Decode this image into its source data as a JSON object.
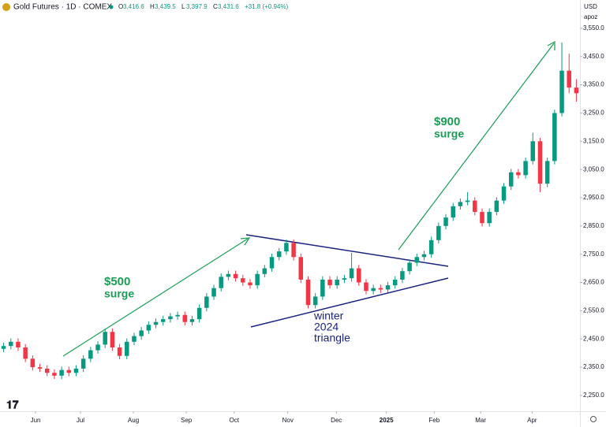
{
  "chart_data": {
    "type": "candlestick",
    "title": "Gold Futures · 1D · COMEX",
    "ohlc_header": [
      {
        "label": "O",
        "value": "3,416.6"
      },
      {
        "label": "H",
        "value": "3,439.5"
      },
      {
        "label": "L",
        "value": "3,397.9"
      },
      {
        "label": "C",
        "value": "3,431.6"
      }
    ],
    "change": "+31.8 (+0.94%)",
    "currency": "USD",
    "unit": "apoz",
    "up_color": "#089981",
    "down_color": "#f23645",
    "annotations": [
      {
        "lines": [
          "$500",
          "surge"
        ],
        "color": "#1a9c55"
      },
      {
        "lines": [
          "$900",
          "surge"
        ],
        "color": "#1a9c55"
      },
      {
        "lines": [
          "winter",
          "2024",
          "triangle"
        ],
        "color": "#1a237e"
      }
    ],
    "open": [
      2415,
      2425,
      2440,
      2420,
      2380,
      2350,
      2345,
      2330,
      2320,
      2340,
      2330,
      2345,
      2380,
      2410,
      2430,
      2475,
      2420,
      2390,
      2440,
      2460,
      2480,
      2500,
      2510,
      2520,
      2530,
      2535,
      2510,
      2520,
      2560,
      2600,
      2630,
      2670,
      2680,
      2665,
      2650,
      2640,
      2680,
      2700,
      2740,
      2760,
      2790,
      2740,
      2660,
      2570,
      2600,
      2660,
      2640,
      2660,
      2665,
      2700,
      2650,
      2620,
      2630,
      2625,
      2640,
      2660,
      2690,
      2720,
      2740,
      2750,
      2800,
      2850,
      2880,
      2920,
      2935,
      2940,
      2900,
      2860,
      2900,
      2940,
      2990,
      3040,
      3030,
      3080,
      3150,
      3000,
      3080,
      3250,
      3400,
      3340
    ],
    "high": [
      2437,
      2452,
      2452,
      2432,
      2392,
      2362,
      2357,
      2342,
      2352,
      2352,
      2357,
      2392,
      2422,
      2442,
      2487,
      2487,
      2432,
      2452,
      2472,
      2492,
      2512,
      2522,
      2532,
      2542,
      2547,
      2547,
      2532,
      2572,
      2612,
      2642,
      2682,
      2692,
      2692,
      2677,
      2662,
      2692,
      2712,
      2752,
      2772,
      2802,
      2802,
      2752,
      2672,
      2612,
      2672,
      2672,
      2672,
      2677,
      2755,
      2712,
      2662,
      2642,
      2642,
      2652,
      2672,
      2702,
      2732,
      2752,
      2762,
      2812,
      2862,
      2892,
      2932,
      2947,
      2970,
      2952,
      2912,
      2912,
      2952,
      3002,
      3052,
      3052,
      3092,
      3180,
      3162,
      3092,
      3262,
      3500,
      3460,
      3370
    ],
    "low": [
      2403,
      2413,
      2408,
      2368,
      2338,
      2333,
      2318,
      2308,
      2308,
      2318,
      2318,
      2333,
      2368,
      2398,
      2418,
      2408,
      2378,
      2378,
      2428,
      2448,
      2468,
      2488,
      2498,
      2508,
      2518,
      2498,
      2498,
      2508,
      2548,
      2588,
      2618,
      2658,
      2653,
      2638,
      2628,
      2628,
      2668,
      2688,
      2728,
      2748,
      2728,
      2648,
      2558,
      2558,
      2588,
      2628,
      2628,
      2648,
      2653,
      2638,
      2608,
      2608,
      2613,
      2613,
      2628,
      2648,
      2678,
      2708,
      2728,
      2738,
      2788,
      2838,
      2868,
      2908,
      2923,
      2888,
      2848,
      2848,
      2888,
      2928,
      2978,
      3018,
      3018,
      3068,
      2970,
      2988,
      3068,
      3238,
      3320,
      3290
    ],
    "close": [
      2425,
      2440,
      2420,
      2380,
      2350,
      2345,
      2330,
      2320,
      2340,
      2330,
      2345,
      2380,
      2410,
      2430,
      2475,
      2420,
      2390,
      2440,
      2460,
      2480,
      2500,
      2510,
      2520,
      2530,
      2535,
      2510,
      2520,
      2560,
      2600,
      2630,
      2670,
      2680,
      2665,
      2650,
      2640,
      2680,
      2700,
      2740,
      2760,
      2790,
      2740,
      2660,
      2570,
      2600,
      2660,
      2640,
      2660,
      2665,
      2700,
      2650,
      2620,
      2630,
      2625,
      2640,
      2660,
      2690,
      2720,
      2740,
      2750,
      2800,
      2850,
      2880,
      2920,
      2935,
      2940,
      2900,
      2860,
      2900,
      2940,
      2990,
      3040,
      3030,
      3080,
      3150,
      3000,
      3080,
      3250,
      3400,
      3340,
      3320
    ],
    "xlim": [
      -0.5,
      79.5
    ],
    "xticks": [
      {
        "value": 4.4,
        "label": "Jun"
      },
      {
        "value": 10.6,
        "label": "Jul"
      },
      {
        "value": 17.9,
        "label": "Aug"
      },
      {
        "value": 25.2,
        "label": "Sep"
      },
      {
        "value": 31.8,
        "label": "Oct"
      },
      {
        "value": 39.2,
        "label": "Nov"
      },
      {
        "value": 45.9,
        "label": "Dec"
      },
      {
        "value": 52.8,
        "label": "2025"
      },
      {
        "value": 59.4,
        "label": "Feb"
      },
      {
        "value": 65.8,
        "label": "Mar"
      },
      {
        "value": 72.9,
        "label": "Apr"
      }
    ],
    "ylim": [
      2194,
      3600
    ],
    "yticks": [
      {
        "value": 2250,
        "label": "2,250.0"
      },
      {
        "value": 2350,
        "label": "2,350.0"
      },
      {
        "value": 2450,
        "label": "2,450.0"
      },
      {
        "value": 2550,
        "label": "2,550.0"
      },
      {
        "value": 2650,
        "label": "2,650.0"
      },
      {
        "value": 2750,
        "label": "2,750.0"
      },
      {
        "value": 2850,
        "label": "2,850.0"
      },
      {
        "value": 2950,
        "label": "2,950.0"
      },
      {
        "value": 3050,
        "label": "3,050.0"
      },
      {
        "value": 3150,
        "label": "3,150.0"
      },
      {
        "value": 3250,
        "label": "3,250.0"
      },
      {
        "value": 3350,
        "label": "3,350.0"
      },
      {
        "value": 3450,
        "label": "3,450.0"
      },
      {
        "value": 3550,
        "label": "3,550.0"
      }
    ],
    "grid": false
  }
}
